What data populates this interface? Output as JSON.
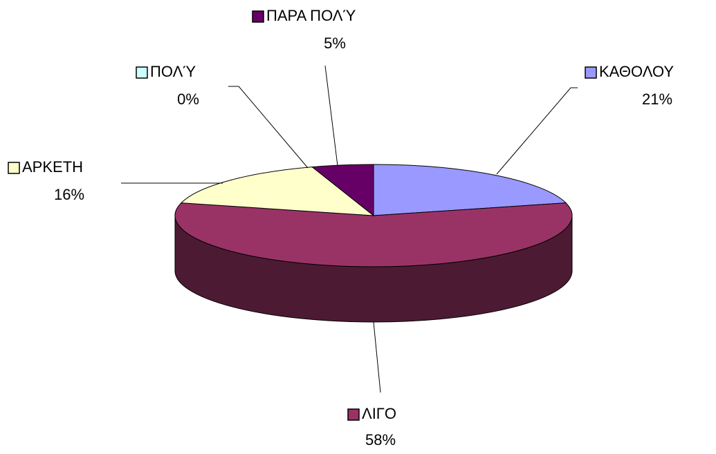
{
  "chart_data": {
    "type": "pie",
    "categories": [
      "ΚΑΘΟΛΟΥ",
      "ΛΙΓΟ",
      "ΑΡΚΕΤΗ",
      "ΠΟΛΎ",
      "ΠΑΡΑ ΠΟΛΎ"
    ],
    "values": [
      21,
      58,
      16,
      0,
      5
    ],
    "value_labels": [
      "21%",
      "58%",
      "16%",
      "0%",
      "5%"
    ],
    "colors": [
      "#9999ff",
      "#993366",
      "#ffffcc",
      "#ccffff",
      "#660066"
    ]
  }
}
